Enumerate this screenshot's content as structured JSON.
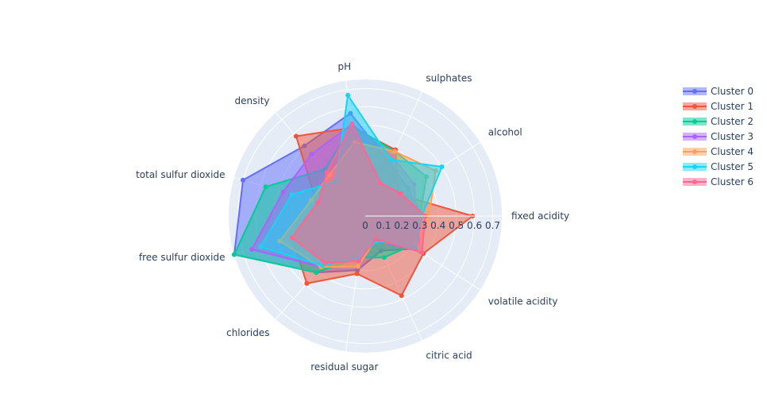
{
  "chart_data": {
    "type": "radar",
    "axes": [
      "fixed acidity",
      "volatile acidity",
      "citric acid",
      "residual sugar",
      "chlorides",
      "free sulfur dioxide",
      "total sulfur dioxide",
      "density",
      "pH",
      "sulphates",
      "alcohol"
    ],
    "radial_ticks": [
      "0",
      "0.1",
      "0.2",
      "0.3",
      "0.4",
      "0.5",
      "0.6",
      "0.7"
    ],
    "radial_range": [
      0,
      0.75
    ],
    "angular_direction": "clockwise",
    "legend_position": "top-right",
    "series": [
      {
        "name": "Cluster 0",
        "color": "#636efa",
        "values": [
          0.31,
          0.33,
          0.21,
          0.3,
          0.41,
          0.75,
          0.7,
          0.51,
          0.57,
          0.32,
          0.28
        ]
      },
      {
        "name": "Cluster 1",
        "color": "#ef553b",
        "values": [
          0.59,
          0.38,
          0.48,
          0.32,
          0.49,
          0.42,
          0.28,
          0.58,
          0.49,
          0.4,
          0.22
        ]
      },
      {
        "name": "Cluster 2",
        "color": "#00cc96",
        "values": [
          0.3,
          0.3,
          0.25,
          0.23,
          0.41,
          0.75,
          0.57,
          0.34,
          0.5,
          0.39,
          0.4
        ]
      },
      {
        "name": "Cluster 3",
        "color": "#ab63fa",
        "values": [
          0.28,
          0.36,
          0.15,
          0.23,
          0.37,
          0.65,
          0.47,
          0.45,
          0.51,
          0.36,
          0.32
        ]
      },
      {
        "name": "Cluster 4",
        "color": "#ffa15a",
        "values": [
          0.35,
          0.35,
          0.14,
          0.28,
          0.37,
          0.49,
          0.31,
          0.3,
          0.41,
          0.39,
          0.46
        ]
      },
      {
        "name": "Cluster 5",
        "color": "#19d3f3",
        "values": [
          0.31,
          0.33,
          0.15,
          0.23,
          0.36,
          0.6,
          0.42,
          0.25,
          0.67,
          0.34,
          0.5
        ]
      },
      {
        "name": "Cluster 6",
        "color": "#ff6692",
        "values": [
          0.33,
          0.37,
          0.14,
          0.25,
          0.34,
          0.42,
          0.27,
          0.32,
          0.51,
          0.2,
          0.23
        ]
      }
    ]
  }
}
